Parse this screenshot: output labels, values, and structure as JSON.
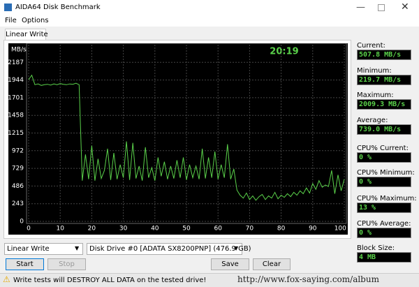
{
  "window": {
    "title": "AIDA64 Disk Benchmark",
    "menu": [
      "File",
      "Options"
    ],
    "tab": "Linear Write"
  },
  "chart_data": {
    "type": "line",
    "ylabel": "MB/s",
    "annotations": [
      "20:19"
    ],
    "color": "#5ad14a",
    "grid": true,
    "x": [
      0,
      1,
      2,
      3,
      4,
      5,
      6,
      7,
      8,
      9,
      10,
      11,
      12,
      13,
      14,
      15,
      16,
      17,
      18,
      19,
      20,
      21,
      22,
      23,
      24,
      25,
      26,
      27,
      28,
      29,
      30,
      31,
      32,
      33,
      34,
      35,
      36,
      37,
      38,
      39,
      40,
      41,
      42,
      43,
      44,
      45,
      46,
      47,
      48,
      49,
      50,
      51,
      52,
      53,
      54,
      55,
      56,
      57,
      58,
      59,
      60,
      61,
      62,
      63,
      64,
      65,
      66,
      67,
      68,
      69,
      70,
      71,
      72,
      73,
      74,
      75,
      76,
      77,
      78,
      79,
      80,
      81,
      82,
      83,
      84,
      85,
      86,
      87,
      88,
      89,
      90,
      91,
      92,
      93,
      94,
      95,
      96,
      97,
      98,
      99,
      100
    ],
    "values": [
      1950,
      2010,
      1880,
      1890,
      1870,
      1880,
      1885,
      1875,
      1890,
      1880,
      1895,
      1885,
      1880,
      1890,
      1885,
      1900,
      1880,
      560,
      920,
      580,
      1040,
      560,
      860,
      590,
      700,
      1000,
      570,
      940,
      580,
      780,
      600,
      1100,
      570,
      1080,
      590,
      760,
      560,
      1020,
      600,
      740,
      560,
      880,
      620,
      820,
      580,
      760,
      590,
      840,
      600,
      880,
      570,
      780,
      600,
      760,
      580,
      1000,
      590,
      880,
      600,
      960,
      580,
      780,
      600,
      1060,
      580,
      720,
      430,
      360,
      320,
      390,
      300,
      350,
      290,
      340,
      370,
      300,
      350,
      320,
      400,
      310,
      360,
      330,
      380,
      340,
      400,
      360,
      420,
      380,
      460,
      390,
      520,
      440,
      560,
      470,
      500,
      480,
      700,
      380,
      640,
      420,
      580
    ],
    "xlim": [
      0,
      100
    ],
    "xticks": [
      0,
      10,
      20,
      30,
      40,
      50,
      60,
      70,
      80,
      90,
      {
        "value": 100,
        "label": "100 %"
      }
    ],
    "ylim": [
      0,
      2430
    ],
    "yticks": [
      0,
      243,
      486,
      729,
      972,
      1215,
      1458,
      1701,
      1944,
      2187
    ]
  },
  "stats": [
    {
      "label": "Current:",
      "value": "507.8 MB/s"
    },
    {
      "label": "Minimum:",
      "value": "219.7 MB/s"
    },
    {
      "label": "Maximum:",
      "value": "2009.3 MB/s"
    },
    {
      "label": "Average:",
      "value": "739.0 MB/s"
    },
    {
      "label": "CPU% Current:",
      "value": "0 %"
    },
    {
      "label": "CPU% Minimum:",
      "value": "0 %"
    },
    {
      "label": "CPU% Maximum:",
      "value": "13 %"
    },
    {
      "label": "CPU% Average:",
      "value": "0 %"
    },
    {
      "label": "Block Size:",
      "value": "4 MB"
    }
  ],
  "controls": {
    "test": "Linear Write",
    "drive": "Disk Drive #0  [ADATA SX8200PNP]  (476.9 GB)",
    "buttons": [
      "Start",
      "Stop",
      "Save",
      "Clear"
    ]
  },
  "status": "Write tests will DESTROY ALL DATA on the tested drive!",
  "watermark": "http://www.fox-saying.com/album"
}
